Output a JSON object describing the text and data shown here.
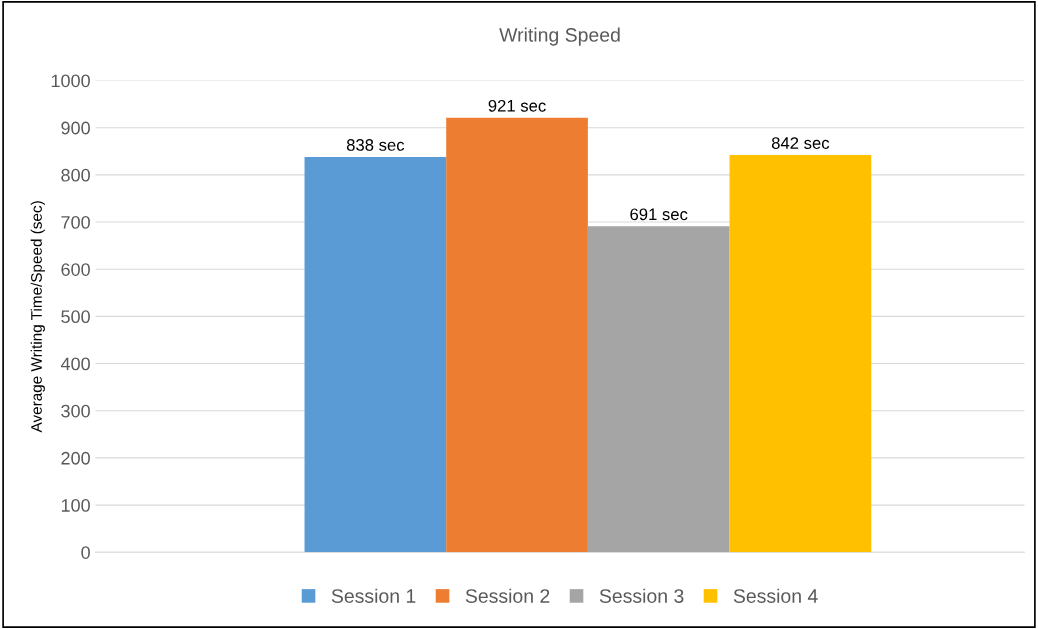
{
  "chart_data": {
    "type": "bar",
    "title": "Writing Speed",
    "ylabel": "Average Writing Time/Speed (sec)",
    "categories": [
      null
    ],
    "series": [
      {
        "name": "Session 1",
        "color": "#5b9bd5",
        "values": [
          838
        ],
        "value_labels": [
          "838 sec"
        ]
      },
      {
        "name": "Session 2",
        "color": "#ed7d31",
        "values": [
          921
        ],
        "value_labels": [
          "921 sec"
        ]
      },
      {
        "name": "Session 3",
        "color": "#a5a5a5",
        "values": [
          691
        ],
        "value_labels": [
          "691 sec"
        ]
      },
      {
        "name": "Session 4",
        "color": "#ffc000",
        "values": [
          842
        ],
        "value_labels": [
          "842 sec"
        ]
      }
    ],
    "ylim": [
      0,
      1000
    ],
    "yticks": [
      0,
      100,
      200,
      300,
      400,
      500,
      600,
      700,
      800,
      900,
      1000
    ],
    "grid": "y",
    "legend": "bottom"
  }
}
